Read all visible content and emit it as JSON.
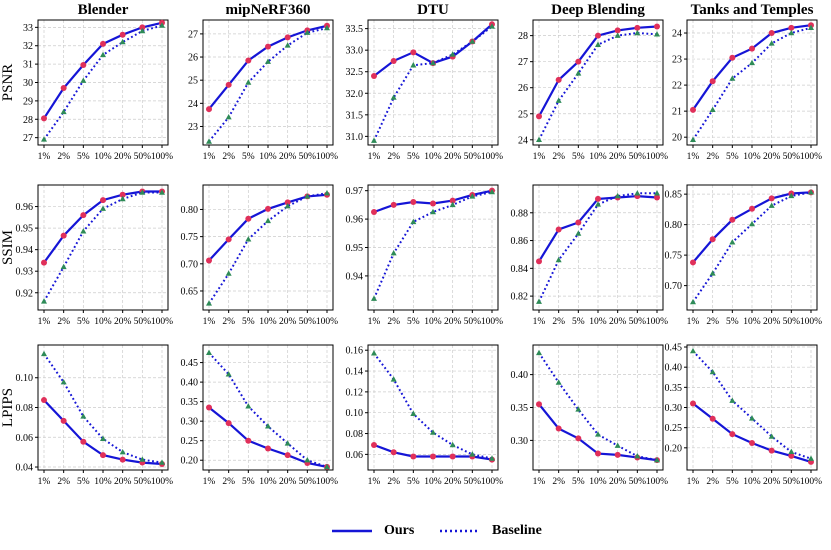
{
  "colors": {
    "ours": "#1515d6",
    "baseline": "#1515d6",
    "ours_marker": "#e0305a",
    "baseline_marker": "#2e8b57"
  },
  "legend": {
    "ours_label": "Ours",
    "baseline_label": "Baseline"
  },
  "chart_data": [
    {
      "type": "line",
      "title": "Blender",
      "ylabel": "PSNR",
      "categories": [
        "1%",
        "2%",
        "5%",
        "10%",
        "20%",
        "50%",
        "100%"
      ],
      "ylim": [
        26.6,
        33.4
      ],
      "yticks": [
        27,
        28,
        29,
        30,
        31,
        32,
        33
      ],
      "series": [
        {
          "name": "Ours",
          "values": [
            28.05,
            29.7,
            30.95,
            32.1,
            32.6,
            33.0,
            33.25
          ]
        },
        {
          "name": "Baseline",
          "values": [
            26.9,
            28.4,
            30.1,
            31.5,
            32.2,
            32.8,
            33.1
          ]
        }
      ]
    },
    {
      "type": "line",
      "title": "mipNeRF360",
      "ylabel": "",
      "categories": [
        "1%",
        "2%",
        "5%",
        "10%",
        "20%",
        "50%",
        "100%"
      ],
      "ylim": [
        22.2,
        27.6
      ],
      "yticks": [
        23,
        24,
        25,
        26,
        27
      ],
      "series": [
        {
          "name": "Ours",
          "values": [
            23.75,
            24.8,
            25.85,
            26.45,
            26.85,
            27.15,
            27.35
          ]
        },
        {
          "name": "Baseline",
          "values": [
            22.35,
            23.4,
            24.9,
            25.8,
            26.5,
            27.05,
            27.25
          ]
        }
      ]
    },
    {
      "type": "line",
      "title": "DTU",
      "ylabel": "",
      "categories": [
        "1%",
        "2%",
        "5%",
        "10%",
        "20%",
        "50%",
        "100%"
      ],
      "ylim": [
        30.8,
        33.7
      ],
      "yticks": [
        31.0,
        31.5,
        32.0,
        32.5,
        33.0,
        33.5
      ],
      "series": [
        {
          "name": "Ours",
          "values": [
            32.4,
            32.75,
            32.95,
            32.7,
            32.85,
            33.2,
            33.6
          ]
        },
        {
          "name": "Baseline",
          "values": [
            30.9,
            31.9,
            32.65,
            32.7,
            32.9,
            33.2,
            33.55
          ]
        }
      ]
    },
    {
      "type": "line",
      "title": "Deep Blending",
      "ylabel": "",
      "categories": [
        "1%",
        "2%",
        "5%",
        "10%",
        "20%",
        "50%",
        "100%"
      ],
      "ylim": [
        23.8,
        28.6
      ],
      "yticks": [
        24,
        25,
        26,
        27,
        28
      ],
      "series": [
        {
          "name": "Ours",
          "values": [
            24.9,
            26.3,
            27.0,
            28.0,
            28.2,
            28.3,
            28.35
          ]
        },
        {
          "name": "Baseline",
          "values": [
            24.0,
            25.5,
            26.55,
            27.65,
            28.0,
            28.1,
            28.05
          ]
        }
      ]
    },
    {
      "type": "line",
      "title": "Tanks and Temples",
      "ylabel": "",
      "categories": [
        "1%",
        "2%",
        "5%",
        "10%",
        "20%",
        "50%",
        "100%"
      ],
      "ylim": [
        19.7,
        24.5
      ],
      "yticks": [
        20,
        21,
        22,
        23,
        24
      ],
      "series": [
        {
          "name": "Ours",
          "values": [
            21.05,
            22.15,
            23.05,
            23.4,
            24.0,
            24.2,
            24.3
          ]
        },
        {
          "name": "Baseline",
          "values": [
            19.9,
            21.05,
            22.25,
            22.85,
            23.6,
            24.0,
            24.2
          ]
        }
      ]
    },
    {
      "type": "line",
      "title": "",
      "ylabel": "SSIM",
      "categories": [
        "1%",
        "2%",
        "5%",
        "10%",
        "20%",
        "50%",
        "100%"
      ],
      "ylim": [
        0.912,
        0.97
      ],
      "yticks": [
        0.92,
        0.93,
        0.94,
        0.95,
        0.96
      ],
      "series": [
        {
          "name": "Ours",
          "values": [
            0.934,
            0.9465,
            0.956,
            0.963,
            0.9655,
            0.967,
            0.967
          ]
        },
        {
          "name": "Baseline",
          "values": [
            0.916,
            0.932,
            0.9485,
            0.959,
            0.9635,
            0.9665,
            0.9665
          ]
        }
      ]
    },
    {
      "type": "line",
      "title": "",
      "ylabel": "",
      "categories": [
        "1%",
        "2%",
        "5%",
        "10%",
        "20%",
        "50%",
        "100%"
      ],
      "ylim": [
        0.615,
        0.845
      ],
      "yticks": [
        0.65,
        0.7,
        0.75,
        0.8
      ],
      "series": [
        {
          "name": "Ours",
          "values": [
            0.706,
            0.745,
            0.783,
            0.801,
            0.813,
            0.824,
            0.827
          ]
        },
        {
          "name": "Baseline",
          "values": [
            0.627,
            0.682,
            0.745,
            0.779,
            0.806,
            0.824,
            0.83
          ]
        }
      ]
    },
    {
      "type": "line",
      "title": "",
      "ylabel": "",
      "categories": [
        "1%",
        "2%",
        "5%",
        "10%",
        "20%",
        "50%",
        "100%"
      ],
      "ylim": [
        0.928,
        0.972
      ],
      "yticks": [
        0.94,
        0.95,
        0.96,
        0.97
      ],
      "series": [
        {
          "name": "Ours",
          "values": [
            0.9625,
            0.965,
            0.966,
            0.9655,
            0.9665,
            0.9685,
            0.97
          ]
        },
        {
          "name": "Baseline",
          "values": [
            0.932,
            0.948,
            0.959,
            0.9625,
            0.965,
            0.968,
            0.9695
          ]
        }
      ]
    },
    {
      "type": "line",
      "title": "",
      "ylabel": "",
      "categories": [
        "1%",
        "2%",
        "5%",
        "10%",
        "20%",
        "50%",
        "100%"
      ],
      "ylim": [
        0.81,
        0.9
      ],
      "yticks": [
        0.82,
        0.84,
        0.86,
        0.88
      ],
      "series": [
        {
          "name": "Ours",
          "values": [
            0.845,
            0.868,
            0.873,
            0.89,
            0.891,
            0.892,
            0.891
          ]
        },
        {
          "name": "Baseline",
          "values": [
            0.816,
            0.846,
            0.865,
            0.886,
            0.892,
            0.894,
            0.894
          ]
        }
      ]
    },
    {
      "type": "line",
      "title": "",
      "ylabel": "",
      "categories": [
        "1%",
        "2%",
        "5%",
        "10%",
        "20%",
        "50%",
        "100%"
      ],
      "ylim": [
        0.66,
        0.865
      ],
      "yticks": [
        0.7,
        0.75,
        0.8,
        0.85
      ],
      "series": [
        {
          "name": "Ours",
          "values": [
            0.738,
            0.776,
            0.808,
            0.826,
            0.843,
            0.851,
            0.853
          ]
        },
        {
          "name": "Baseline",
          "values": [
            0.673,
            0.72,
            0.771,
            0.801,
            0.831,
            0.847,
            0.853
          ]
        }
      ]
    },
    {
      "type": "line",
      "title": "",
      "ylabel": "LPIPS",
      "categories": [
        "1%",
        "2%",
        "5%",
        "10%",
        "20%",
        "50%",
        "100%"
      ],
      "ylim": [
        0.038,
        0.122
      ],
      "yticks": [
        0.04,
        0.06,
        0.08,
        0.1
      ],
      "series": [
        {
          "name": "Ours",
          "values": [
            0.085,
            0.071,
            0.057,
            0.048,
            0.045,
            0.043,
            0.042
          ]
        },
        {
          "name": "Baseline",
          "values": [
            0.116,
            0.097,
            0.074,
            0.059,
            0.05,
            0.045,
            0.043
          ]
        }
      ]
    },
    {
      "type": "line",
      "title": "",
      "ylabel": "",
      "categories": [
        "1%",
        "2%",
        "5%",
        "10%",
        "20%",
        "50%",
        "100%"
      ],
      "ylim": [
        0.175,
        0.495
      ],
      "yticks": [
        0.2,
        0.25,
        0.3,
        0.35,
        0.4,
        0.45
      ],
      "series": [
        {
          "name": "Ours",
          "values": [
            0.335,
            0.295,
            0.25,
            0.23,
            0.213,
            0.193,
            0.183
          ]
        },
        {
          "name": "Baseline",
          "values": [
            0.475,
            0.42,
            0.338,
            0.287,
            0.243,
            0.2,
            0.183
          ]
        }
      ]
    },
    {
      "type": "line",
      "title": "",
      "ylabel": "",
      "categories": [
        "1%",
        "2%",
        "5%",
        "10%",
        "20%",
        "50%",
        "100%"
      ],
      "ylim": [
        0.045,
        0.165
      ],
      "yticks": [
        0.06,
        0.08,
        0.1,
        0.12,
        0.14,
        0.16
      ],
      "series": [
        {
          "name": "Ours",
          "values": [
            0.069,
            0.062,
            0.058,
            0.058,
            0.058,
            0.058,
            0.055
          ]
        },
        {
          "name": "Baseline",
          "values": [
            0.157,
            0.132,
            0.099,
            0.081,
            0.069,
            0.06,
            0.056
          ]
        }
      ]
    },
    {
      "type": "line",
      "title": "",
      "ylabel": "",
      "categories": [
        "1%",
        "2%",
        "5%",
        "10%",
        "20%",
        "50%",
        "100%"
      ],
      "ylim": [
        0.255,
        0.445
      ],
      "yticks": [
        0.3,
        0.35,
        0.4
      ],
      "series": [
        {
          "name": "Ours",
          "values": [
            0.355,
            0.318,
            0.303,
            0.28,
            0.278,
            0.274,
            0.27
          ]
        },
        {
          "name": "Baseline",
          "values": [
            0.433,
            0.388,
            0.347,
            0.309,
            0.292,
            0.276,
            0.27
          ]
        }
      ]
    },
    {
      "type": "line",
      "title": "",
      "ylabel": "",
      "categories": [
        "1%",
        "2%",
        "5%",
        "10%",
        "20%",
        "50%",
        "100%"
      ],
      "ylim": [
        0.145,
        0.455
      ],
      "yticks": [
        0.2,
        0.25,
        0.3,
        0.35,
        0.4,
        0.45
      ],
      "series": [
        {
          "name": "Ours",
          "values": [
            0.31,
            0.272,
            0.234,
            0.212,
            0.193,
            0.18,
            0.165
          ]
        },
        {
          "name": "Baseline",
          "values": [
            0.44,
            0.388,
            0.317,
            0.273,
            0.228,
            0.19,
            0.173
          ]
        }
      ]
    }
  ]
}
